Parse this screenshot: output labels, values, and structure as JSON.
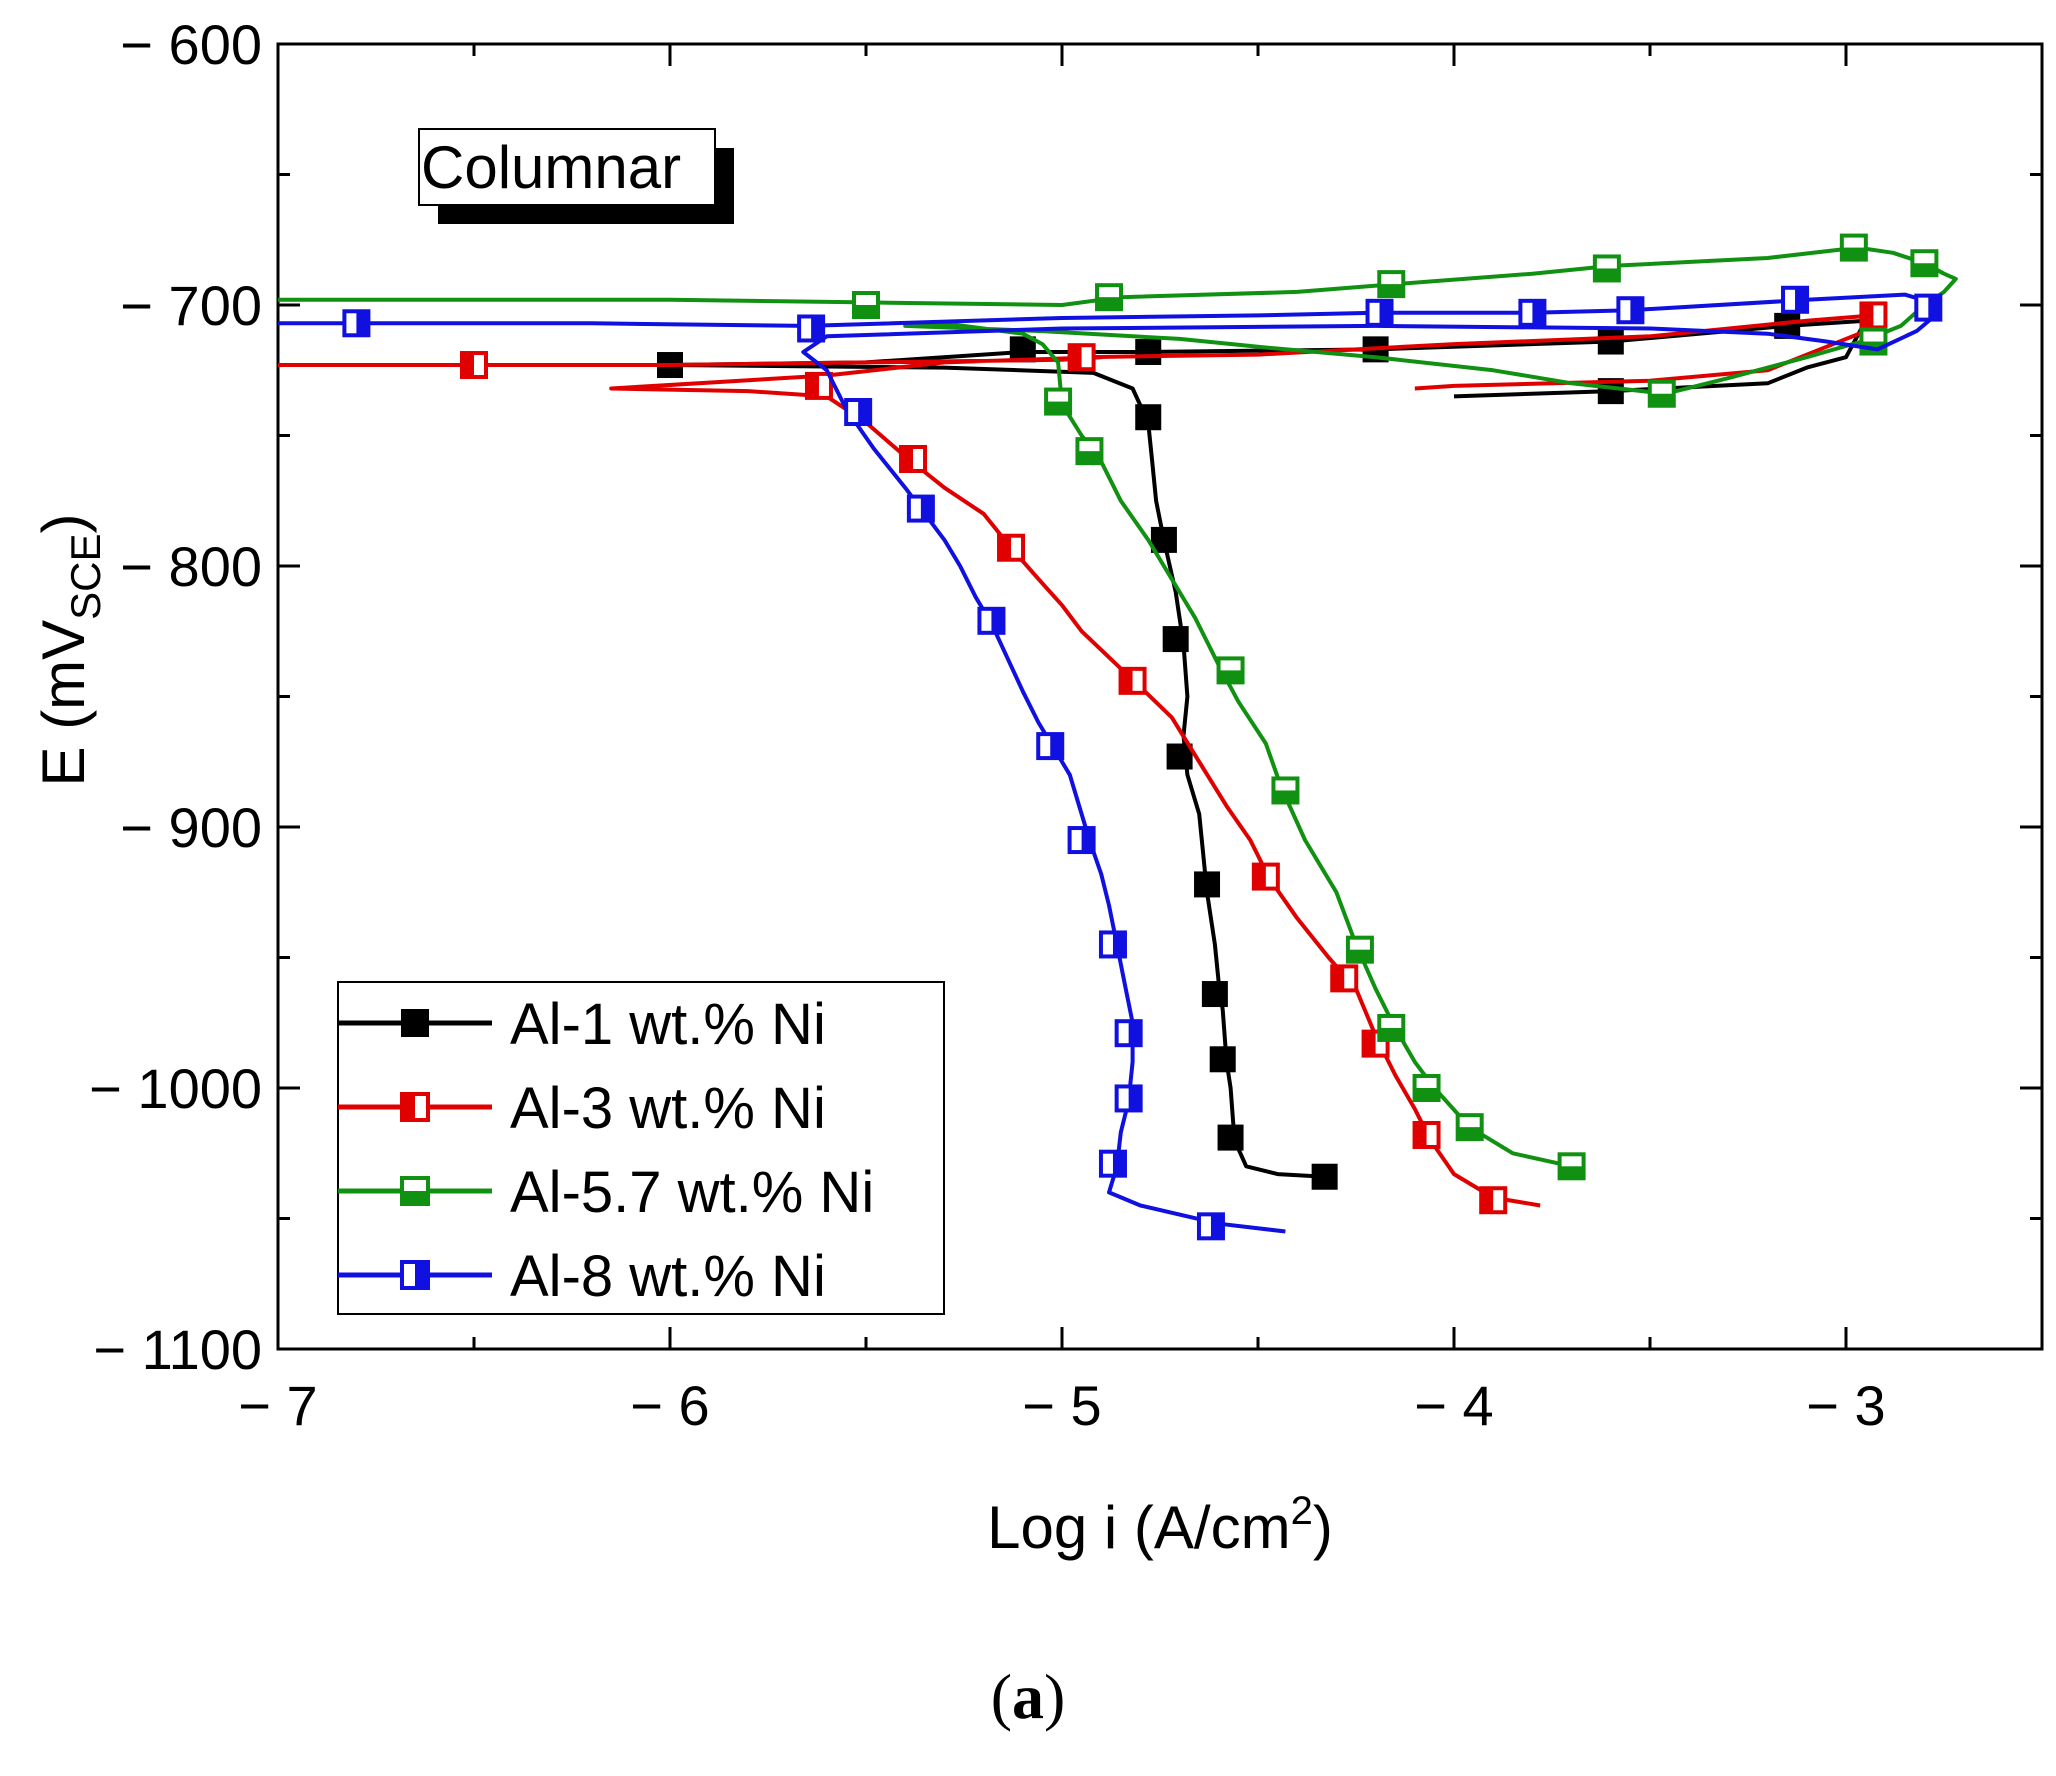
{
  "chart_data": {
    "type": "line",
    "title": "",
    "annotation": "Columnar",
    "xlabel": "Log i (A/cm",
    "xlabel_sup": "2",
    "xlabel_end": ")",
    "ylabel": "E (mV",
    "ylabel_sub": "SCE",
    "ylabel_end": ")",
    "xlim": [
      -7,
      -2.5
    ],
    "ylim": [
      -1100,
      -600
    ],
    "xticks": [
      -7,
      -6,
      -5,
      -4,
      -3
    ],
    "xtick_labels": [
      "− 7",
      "− 6",
      "− 5",
      "− 4",
      "− 3"
    ],
    "yticks": [
      -600,
      -700,
      -800,
      -900,
      -1000,
      -1100
    ],
    "ytick_labels": [
      "− 600",
      "− 700",
      "− 800",
      "− 900",
      "− 1000",
      "− 1100"
    ],
    "legend_position": "bottom-left",
    "series": [
      {
        "name": "Al-1 wt.% Ni",
        "color": "#000000",
        "marker": "filled-square",
        "points": [
          [
            -4.33,
            -1034
          ],
          [
            -4.45,
            -1033
          ],
          [
            -4.53,
            -1030
          ],
          [
            -4.56,
            -1020
          ],
          [
            -4.57,
            -1000
          ],
          [
            -4.58,
            -990
          ],
          [
            -4.59,
            -970
          ],
          [
            -4.6,
            -960
          ],
          [
            -4.61,
            -945
          ],
          [
            -4.63,
            -925
          ],
          [
            -4.64,
            -910
          ],
          [
            -4.65,
            -895
          ],
          [
            -4.68,
            -880
          ],
          [
            -4.69,
            -865
          ],
          [
            -4.68,
            -850
          ],
          [
            -4.69,
            -830
          ],
          [
            -4.71,
            -810
          ],
          [
            -4.74,
            -790
          ],
          [
            -4.76,
            -775
          ],
          [
            -4.77,
            -760
          ],
          [
            -4.78,
            -745
          ],
          [
            -4.82,
            -732
          ],
          [
            -4.92,
            -726
          ],
          [
            -5.3,
            -724
          ],
          [
            -6.0,
            -723
          ],
          [
            -5.5,
            -722
          ],
          [
            -5.1,
            -718
          ],
          [
            -4.8,
            -718
          ],
          [
            -4.2,
            -717
          ],
          [
            -3.6,
            -714
          ],
          [
            -3.15,
            -708
          ],
          [
            -2.95,
            -706
          ],
          [
            -3.0,
            -720
          ],
          [
            -3.1,
            -724
          ],
          [
            -3.2,
            -730
          ],
          [
            -3.6,
            -733
          ],
          [
            -4.0,
            -735
          ]
        ],
        "markers": [
          [
            -6.0,
            -723
          ],
          [
            -5.1,
            -717
          ],
          [
            -4.78,
            -743
          ],
          [
            -4.74,
            -790
          ],
          [
            -4.71,
            -828
          ],
          [
            -4.7,
            -873
          ],
          [
            -4.63,
            -922
          ],
          [
            -4.61,
            -964
          ],
          [
            -4.59,
            -989
          ],
          [
            -4.57,
            -1019
          ],
          [
            -4.33,
            -1034
          ],
          [
            -4.78,
            -718
          ],
          [
            -4.2,
            -717
          ],
          [
            -3.6,
            -714
          ],
          [
            -3.15,
            -708
          ],
          [
            -3.6,
            -733
          ]
        ]
      },
      {
        "name": "Al-3 wt.% Ni",
        "color": "#e00000",
        "marker": "half-filled-square",
        "points": [
          [
            -7.0,
            -723
          ],
          [
            -6.5,
            -723
          ],
          [
            -6.0,
            -723
          ],
          [
            -5.5,
            -722
          ],
          [
            -5.0,
            -721
          ],
          [
            -4.9,
            -720
          ],
          [
            -5.3,
            -722
          ],
          [
            -5.6,
            -727
          ],
          [
            -6.15,
            -732
          ],
          [
            -5.8,
            -733
          ],
          [
            -5.6,
            -735
          ],
          [
            -5.55,
            -740
          ],
          [
            -5.5,
            -745
          ],
          [
            -5.4,
            -758
          ],
          [
            -5.3,
            -770
          ],
          [
            -5.2,
            -780
          ],
          [
            -5.13,
            -793
          ],
          [
            -5.06,
            -805
          ],
          [
            -5.0,
            -815
          ],
          [
            -4.95,
            -825
          ],
          [
            -4.88,
            -835
          ],
          [
            -4.81,
            -845
          ],
          [
            -4.72,
            -858
          ],
          [
            -4.65,
            -875
          ],
          [
            -4.58,
            -892
          ],
          [
            -4.52,
            -905
          ],
          [
            -4.47,
            -920
          ],
          [
            -4.4,
            -935
          ],
          [
            -4.32,
            -950
          ],
          [
            -4.25,
            -962
          ],
          [
            -4.2,
            -980
          ],
          [
            -4.15,
            -995
          ],
          [
            -4.1,
            -1008
          ],
          [
            -4.06,
            -1020
          ],
          [
            -4.0,
            -1033
          ],
          [
            -3.9,
            -1042
          ],
          [
            -3.78,
            -1045
          ]
        ],
        "markers": [
          [
            -6.5,
            -723
          ],
          [
            -5.62,
            -731
          ],
          [
            -5.38,
            -759
          ],
          [
            -5.13,
            -793
          ],
          [
            -4.82,
            -844
          ],
          [
            -4.48,
            -919
          ],
          [
            -4.28,
            -958
          ],
          [
            -4.2,
            -983
          ],
          [
            -4.07,
            -1018
          ],
          [
            -3.9,
            -1043
          ],
          [
            -4.95,
            -720
          ],
          [
            -2.93,
            -704
          ]
        ],
        "return_points": [
          [
            -4.95,
            -720
          ],
          [
            -4.5,
            -719
          ],
          [
            -4.0,
            -715
          ],
          [
            -3.5,
            -712
          ],
          [
            -3.1,
            -706
          ],
          [
            -2.93,
            -704
          ],
          [
            -2.95,
            -710
          ],
          [
            -3.05,
            -716
          ],
          [
            -3.2,
            -725
          ],
          [
            -3.5,
            -729
          ],
          [
            -4.0,
            -731
          ],
          [
            -4.1,
            -732
          ]
        ]
      },
      {
        "name": "Al-5.7 wt.% Ni",
        "color": "#119111",
        "marker": "bottom-half-filled-square",
        "points": [
          [
            -7.0,
            -698
          ],
          [
            -6.0,
            -698
          ],
          [
            -5.5,
            -699
          ],
          [
            -5.0,
            -700
          ],
          [
            -4.85,
            -697
          ],
          [
            -4.4,
            -695
          ],
          [
            -4.15,
            -692
          ],
          [
            -3.8,
            -688
          ],
          [
            -3.6,
            -685
          ],
          [
            -3.2,
            -682
          ],
          [
            -2.97,
            -678
          ],
          [
            -2.88,
            -680
          ],
          [
            -2.8,
            -684
          ],
          [
            -2.75,
            -688
          ],
          [
            -2.72,
            -690
          ],
          [
            -2.75,
            -695
          ],
          [
            -2.8,
            -700
          ],
          [
            -2.86,
            -708
          ],
          [
            -2.96,
            -714
          ],
          [
            -3.1,
            -720
          ],
          [
            -3.3,
            -728
          ],
          [
            -3.46,
            -734
          ],
          [
            -3.7,
            -730
          ],
          [
            -3.9,
            -725
          ],
          [
            -4.2,
            -720
          ],
          [
            -4.5,
            -716
          ],
          [
            -4.7,
            -713
          ],
          [
            -5.05,
            -710
          ],
          [
            -5.4,
            -708
          ],
          [
            -5.3,
            -707
          ],
          [
            -5.1,
            -711
          ],
          [
            -5.05,
            -715
          ],
          [
            -5.01,
            -722
          ],
          [
            -5.0,
            -738
          ],
          [
            -4.95,
            -750
          ],
          [
            -4.9,
            -760
          ],
          [
            -4.85,
            -775
          ],
          [
            -4.78,
            -790
          ],
          [
            -4.72,
            -805
          ],
          [
            -4.66,
            -820
          ],
          [
            -4.6,
            -838
          ],
          [
            -4.55,
            -852
          ],
          [
            -4.48,
            -868
          ],
          [
            -4.44,
            -885
          ],
          [
            -4.38,
            -905
          ],
          [
            -4.3,
            -925
          ],
          [
            -4.25,
            -945
          ],
          [
            -4.2,
            -962
          ],
          [
            -4.15,
            -977
          ],
          [
            -4.1,
            -990
          ],
          [
            -4.05,
            -1000
          ],
          [
            -3.96,
            -1015
          ],
          [
            -3.85,
            -1025
          ],
          [
            -3.7,
            -1030
          ]
        ],
        "markers": [
          [
            -5.5,
            -700
          ],
          [
            -4.88,
            -697
          ],
          [
            -4.16,
            -692
          ],
          [
            -3.61,
            -686
          ],
          [
            -2.98,
            -678
          ],
          [
            -2.8,
            -684
          ],
          [
            -2.93,
            -714
          ],
          [
            -3.47,
            -734
          ],
          [
            -5.01,
            -737
          ],
          [
            -4.93,
            -756
          ],
          [
            -4.57,
            -840
          ],
          [
            -4.43,
            -886
          ],
          [
            -4.24,
            -947
          ],
          [
            -4.16,
            -977
          ],
          [
            -4.07,
            -1000
          ],
          [
            -3.96,
            -1015
          ],
          [
            -3.7,
            -1030
          ]
        ]
      },
      {
        "name": "Al-8 wt.% Ni",
        "color": "#1010e0",
        "marker": "right-half-filled-square",
        "points": [
          [
            -7.0,
            -707
          ],
          [
            -6.8,
            -707
          ],
          [
            -6.2,
            -707
          ],
          [
            -5.65,
            -708
          ],
          [
            -5.0,
            -705
          ],
          [
            -4.5,
            -704
          ],
          [
            -4.2,
            -703
          ],
          [
            -3.8,
            -703
          ],
          [
            -3.55,
            -702
          ],
          [
            -3.1,
            -698
          ],
          [
            -2.85,
            -696
          ],
          [
            -2.76,
            -700
          ],
          [
            -2.78,
            -705
          ],
          [
            -2.82,
            -710
          ],
          [
            -2.92,
            -717
          ],
          [
            -3.05,
            -714
          ],
          [
            -3.2,
            -711
          ],
          [
            -3.5,
            -709
          ],
          [
            -4.2,
            -708
          ],
          [
            -5.0,
            -709
          ],
          [
            -5.6,
            -712
          ],
          [
            -5.66,
            -718
          ],
          [
            -5.6,
            -725
          ],
          [
            -5.55,
            -740
          ],
          [
            -5.48,
            -755
          ],
          [
            -5.4,
            -770
          ],
          [
            -5.35,
            -780
          ],
          [
            -5.3,
            -790
          ],
          [
            -5.26,
            -800
          ],
          [
            -5.22,
            -812
          ],
          [
            -5.18,
            -822
          ],
          [
            -5.14,
            -835
          ],
          [
            -5.1,
            -848
          ],
          [
            -5.06,
            -860
          ],
          [
            -5.02,
            -870
          ],
          [
            -4.98,
            -880
          ],
          [
            -4.95,
            -895
          ],
          [
            -4.93,
            -905
          ],
          [
            -4.9,
            -918
          ],
          [
            -4.88,
            -930
          ],
          [
            -4.86,
            -945
          ],
          [
            -4.84,
            -960
          ],
          [
            -4.82,
            -975
          ],
          [
            -4.82,
            -990
          ],
          [
            -4.83,
            -1005
          ],
          [
            -4.85,
            -1017
          ],
          [
            -4.86,
            -1030
          ],
          [
            -4.88,
            -1040
          ],
          [
            -4.8,
            -1045
          ],
          [
            -4.6,
            -1052
          ],
          [
            -4.43,
            -1055
          ]
        ],
        "markers": [
          [
            -6.8,
            -707
          ],
          [
            -5.64,
            -709
          ],
          [
            -5.52,
            -741
          ],
          [
            -5.36,
            -778
          ],
          [
            -5.18,
            -821
          ],
          [
            -5.03,
            -869
          ],
          [
            -4.95,
            -905
          ],
          [
            -4.87,
            -945
          ],
          [
            -4.83,
            -979
          ],
          [
            -4.83,
            -1004
          ],
          [
            -4.87,
            -1029
          ],
          [
            -4.62,
            -1053
          ],
          [
            -4.19,
            -703
          ],
          [
            -3.8,
            -703
          ],
          [
            -3.55,
            -702
          ],
          [
            -3.13,
            -698
          ],
          [
            -2.79,
            -701
          ]
        ]
      }
    ]
  },
  "caption": "(a)"
}
